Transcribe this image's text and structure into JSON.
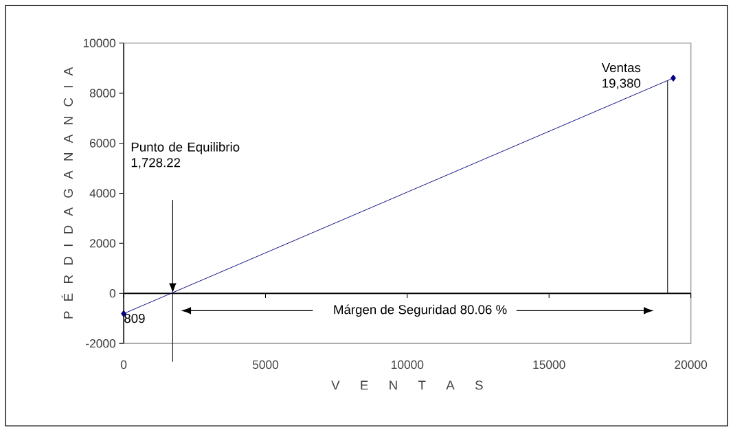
{
  "chart_data": {
    "type": "line",
    "xlabel": "V E N T A S",
    "ylabel": "P É R D I D A G A N A N C I A",
    "x": [
      0,
      19380
    ],
    "series": [
      {
        "color": "#000080",
        "values": [
          -809,
          8600
        ]
      }
    ],
    "marker": "diamond",
    "xlim": [
      0,
      20000
    ],
    "xticks": [
      0,
      5000,
      10000,
      15000,
      20000
    ],
    "ylim": [
      -2000,
      10000
    ],
    "yticks": [
      -2000,
      0,
      2000,
      4000,
      6000,
      8000,
      10000
    ],
    "ref_lines": [
      {
        "axis": "x",
        "value": 1728.22
      },
      {
        "axis": "x",
        "value": 19180
      }
    ],
    "annotations": [
      "Punto de  Equilibrio 1,728.22",
      {
        "text": "Ventas 19,380",
        "x": 19380,
        "y": 8600
      },
      {
        "text": "809",
        "x": 0,
        "y": -809
      },
      "Márgen de Seguridad  80.06 %"
    ]
  }
}
